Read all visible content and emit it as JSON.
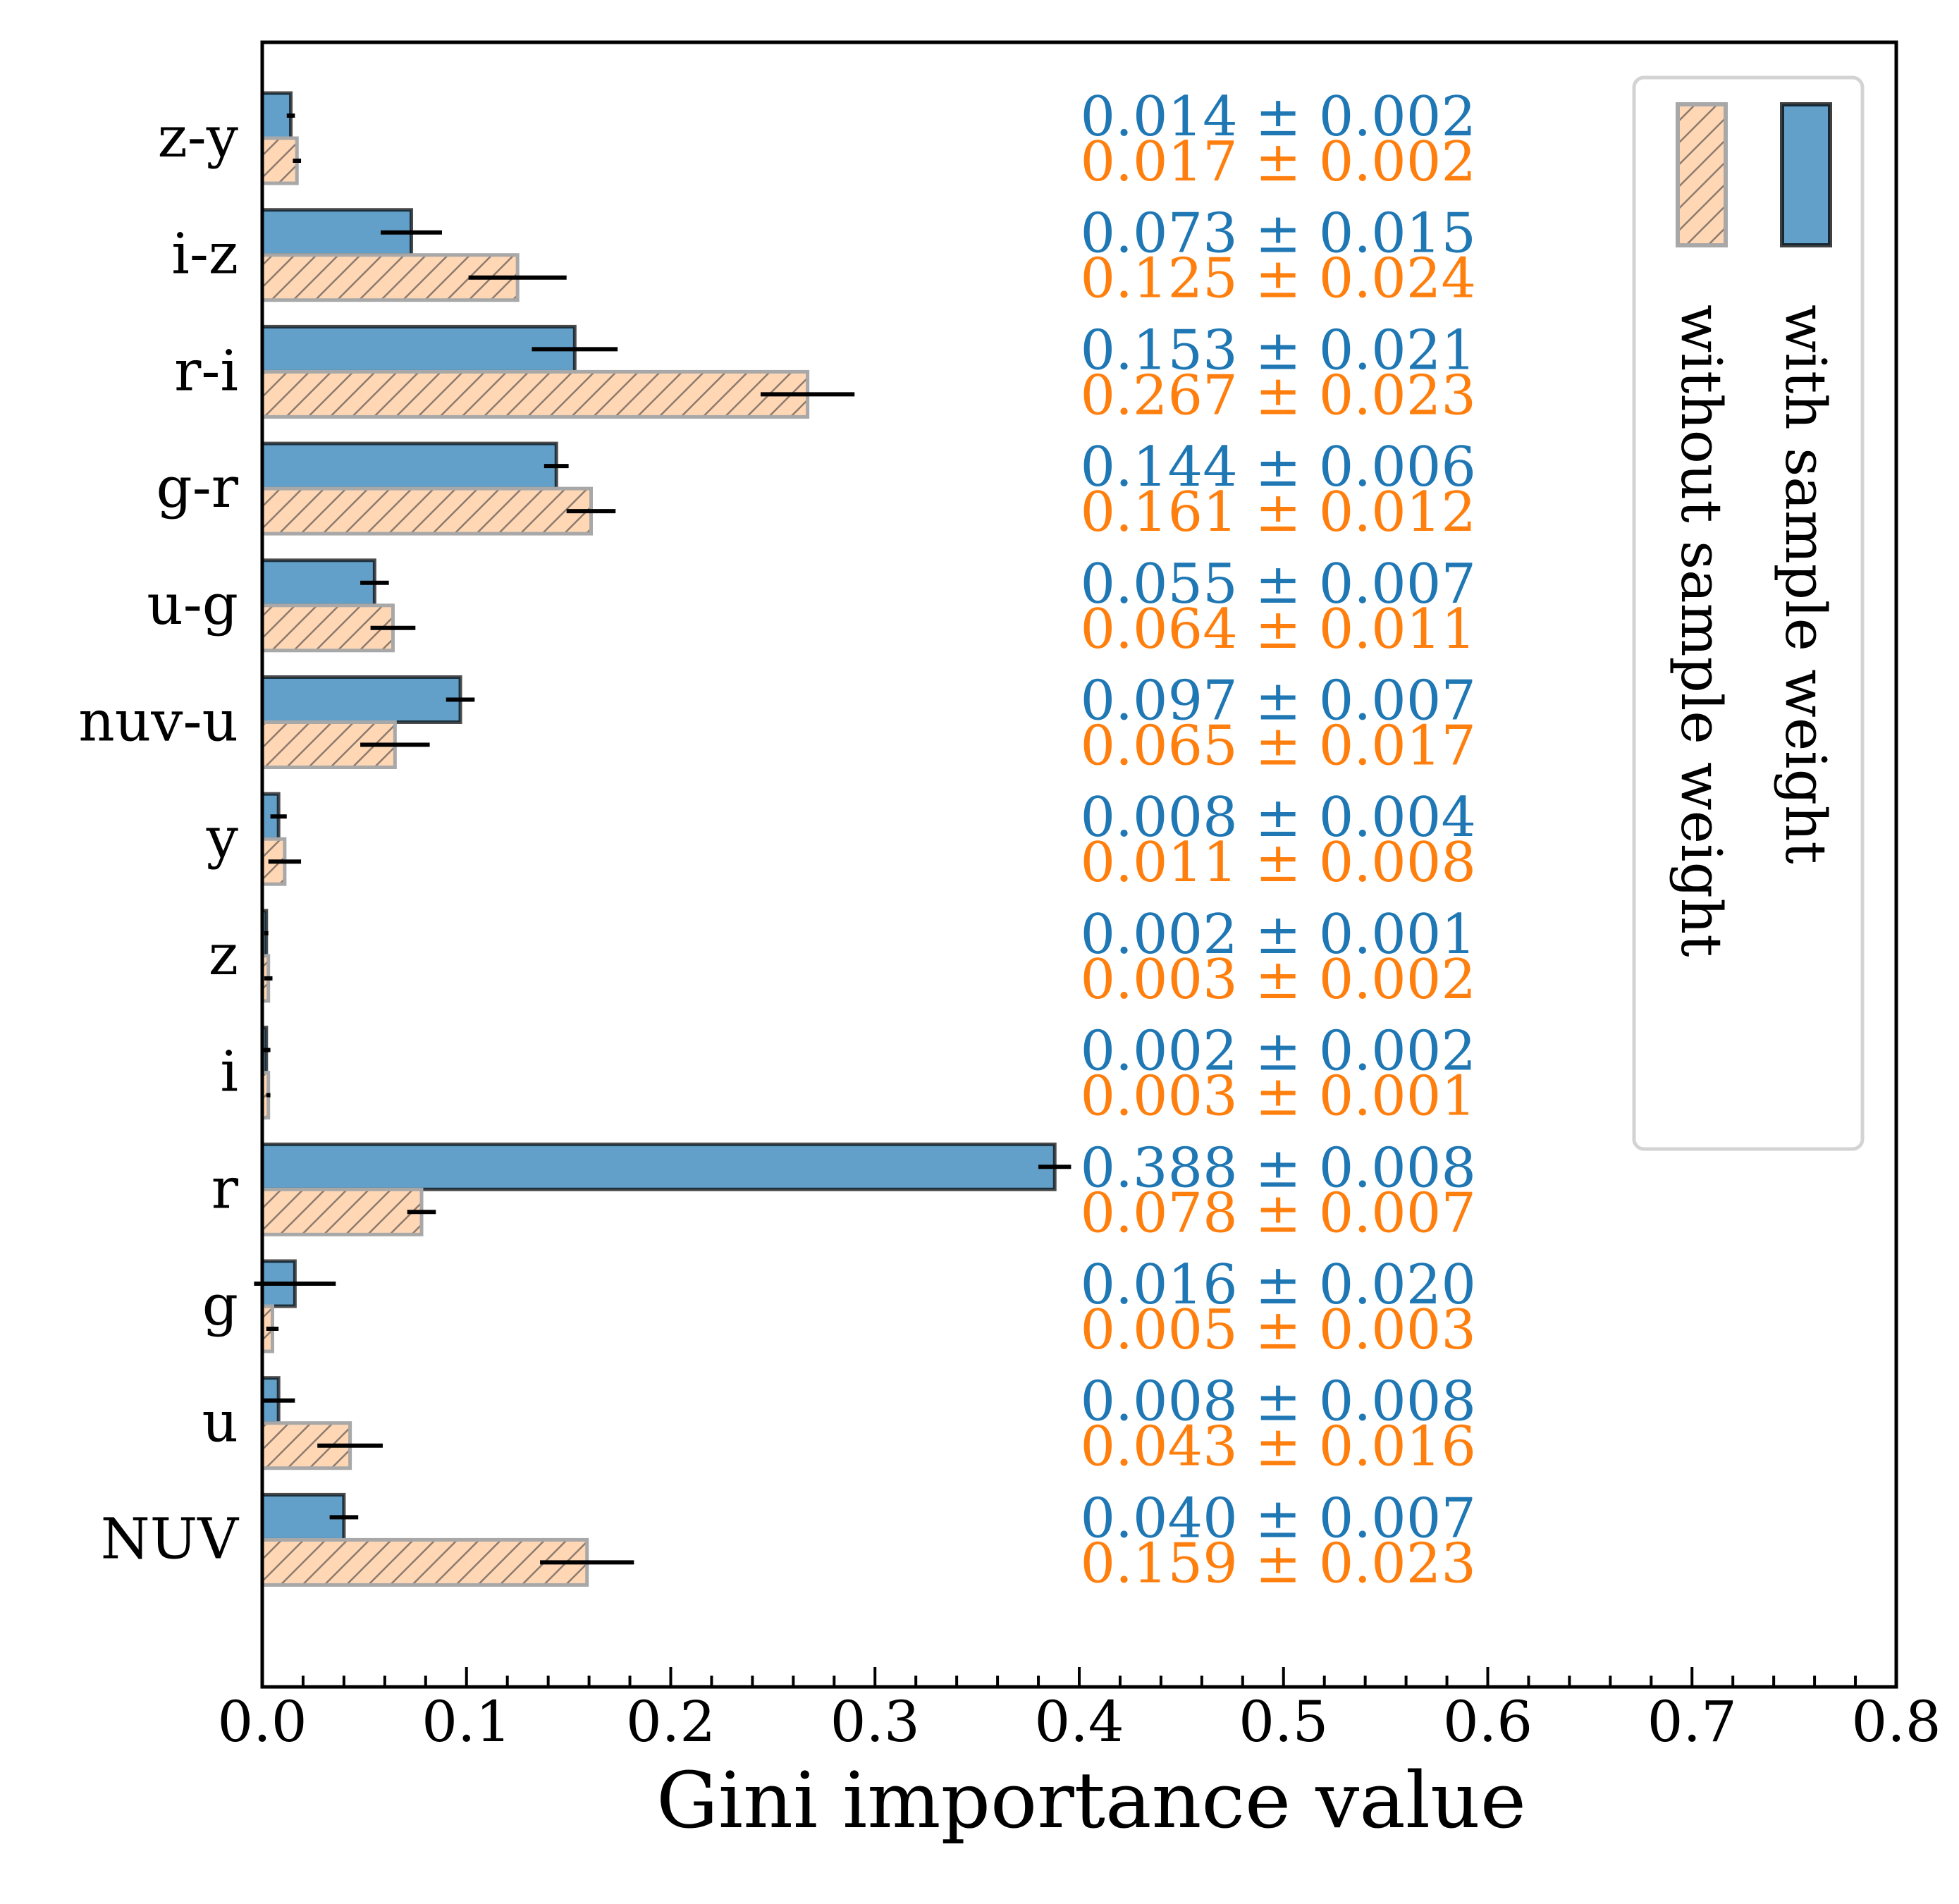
{
  "chart_data": {
    "type": "bar",
    "orientation": "horizontal",
    "xlabel": "Gini importance value",
    "ylabel": "",
    "xlim": [
      0,
      0.8
    ],
    "xticks": [
      "0.0",
      "0.1",
      "0.2",
      "0.3",
      "0.4",
      "0.5",
      "0.6",
      "0.7",
      "0.8"
    ],
    "categories": [
      "z-y",
      "i-z",
      "r-i",
      "g-r",
      "u-g",
      "nuv-u",
      "y",
      "z",
      "i",
      "r",
      "g",
      "u",
      "NUV"
    ],
    "series": [
      {
        "name": "with sample weight",
        "color": "#1f77b4",
        "hatch": "none",
        "values": [
          0.014,
          0.073,
          0.153,
          0.144,
          0.055,
          0.097,
          0.008,
          0.002,
          0.002,
          0.388,
          0.016,
          0.008,
          0.04
        ],
        "errors": [
          0.002,
          0.015,
          0.021,
          0.006,
          0.007,
          0.007,
          0.004,
          0.001,
          0.002,
          0.008,
          0.02,
          0.008,
          0.007
        ],
        "labels": [
          "0.014 ± 0.002",
          "0.073 ± 0.015",
          "0.153 ± 0.021",
          "0.144 ± 0.006",
          "0.055 ± 0.007",
          "0.097 ± 0.007",
          "0.008 ± 0.004",
          "0.002 ± 0.001",
          "0.002 ± 0.002",
          "0.388 ± 0.008",
          "0.016 ± 0.020",
          "0.008 ± 0.008",
          "0.040 ± 0.007"
        ]
      },
      {
        "name": "without sample weight",
        "color": "#ff7f0e",
        "hatch": "diagonal",
        "values": [
          0.017,
          0.125,
          0.267,
          0.161,
          0.064,
          0.065,
          0.011,
          0.003,
          0.003,
          0.078,
          0.005,
          0.043,
          0.159
        ],
        "errors": [
          0.002,
          0.024,
          0.023,
          0.012,
          0.011,
          0.017,
          0.008,
          0.002,
          0.001,
          0.007,
          0.003,
          0.016,
          0.023
        ],
        "labels": [
          "0.017 ± 0.002",
          "0.125 ± 0.024",
          "0.267 ± 0.023",
          "0.161 ± 0.012",
          "0.064 ± 0.011",
          "0.065 ± 0.017",
          "0.011 ± 0.008",
          "0.003 ± 0.002",
          "0.003 ± 0.001",
          "0.078 ± 0.007",
          "0.005 ± 0.003",
          "0.043 ± 0.016",
          "0.159 ± 0.023"
        ]
      }
    ],
    "legend": {
      "placement": "top-right",
      "entries": [
        "with sample weight",
        "without sample weight"
      ]
    }
  }
}
